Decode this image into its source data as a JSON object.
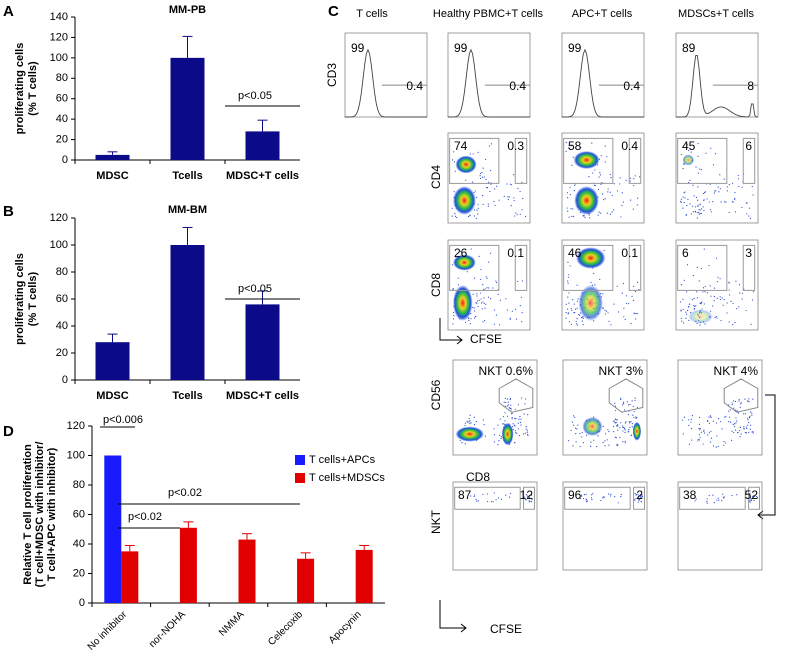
{
  "chart_data": [
    {
      "panel": "A",
      "type": "bar",
      "title": "MM-PB",
      "categories": [
        "MDSC",
        "Tcells",
        "MDSC+T cells"
      ],
      "values": [
        5,
        100,
        28
      ],
      "errors": [
        3,
        21,
        11
      ],
      "color": "#0b0b8a",
      "ylim": [
        0,
        140
      ],
      "yticks": [
        0,
        20,
        40,
        60,
        80,
        100,
        120,
        140
      ],
      "y_label": [
        "proliferating cells",
        "(% T cells)"
      ],
      "annotations": [
        "p<0.05"
      ]
    },
    {
      "panel": "B",
      "type": "bar",
      "title": "MM-BM",
      "categories": [
        "MDSC",
        "Tcells",
        "MDSC+T cells"
      ],
      "values": [
        28,
        100,
        56
      ],
      "errors": [
        6,
        13,
        10
      ],
      "color": "#0b0b8a",
      "ylim": [
        0,
        120
      ],
      "yticks": [
        0,
        20,
        40,
        60,
        80,
        100,
        120
      ],
      "y_label": [
        "proliferating cells",
        "(% T cells)"
      ],
      "annotations": [
        "p<0.05"
      ]
    },
    {
      "panel": "D",
      "type": "bar",
      "categories": [
        "No inhibitor",
        "nor-NOHA",
        "NMMA",
        "Celecoxib",
        "Apocynin"
      ],
      "series": [
        {
          "name": "T cells+APCs",
          "color": "#1a1aff",
          "values": [
            100,
            null,
            null,
            null,
            null
          ]
        },
        {
          "name": "T cells+MDSCs",
          "color": "#e00000",
          "values": [
            35,
            51,
            43,
            30,
            36
          ],
          "errors": [
            4,
            4,
            4,
            4,
            3
          ]
        }
      ],
      "ylim": [
        0,
        120
      ],
      "yticks": [
        0,
        20,
        40,
        60,
        80,
        100,
        120
      ],
      "y_label": [
        "Relative T cell proliferation",
        "(T cell+MDSC with inhibitor/",
        "T cell+APC with inhibitor)"
      ],
      "annotations": [
        "p<0.006",
        "p<0.02",
        "p<0.02"
      ]
    }
  ],
  "flow": {
    "panel": "C",
    "columns": [
      "T cells",
      "Healthy PBMC+T cells",
      "APC+T cells",
      "MDSCs+T cells"
    ],
    "markers": [
      "CD3",
      "CD4",
      "CD8",
      "CFSE",
      "CD56",
      "CD8",
      "NKT",
      "CFSE"
    ],
    "cd3": [
      [
        "99",
        "0.4"
      ],
      [
        "99",
        "0.4"
      ],
      [
        "99",
        "0.4"
      ],
      [
        "89",
        "8"
      ]
    ],
    "cd4": [
      [
        "74",
        "0.3"
      ],
      [
        "58",
        "0.4"
      ],
      [
        "45",
        "6"
      ]
    ],
    "cd8": [
      [
        "26",
        "0.1"
      ],
      [
        "46",
        "0.1"
      ],
      [
        "6",
        "3"
      ]
    ],
    "nkt_gates": [
      "NKT 0.6%",
      "NKT 3%",
      "NKT 4%"
    ],
    "nkt_cfse": [
      [
        "87",
        "12"
      ],
      [
        "96",
        "2"
      ],
      [
        "38",
        "52"
      ]
    ]
  }
}
